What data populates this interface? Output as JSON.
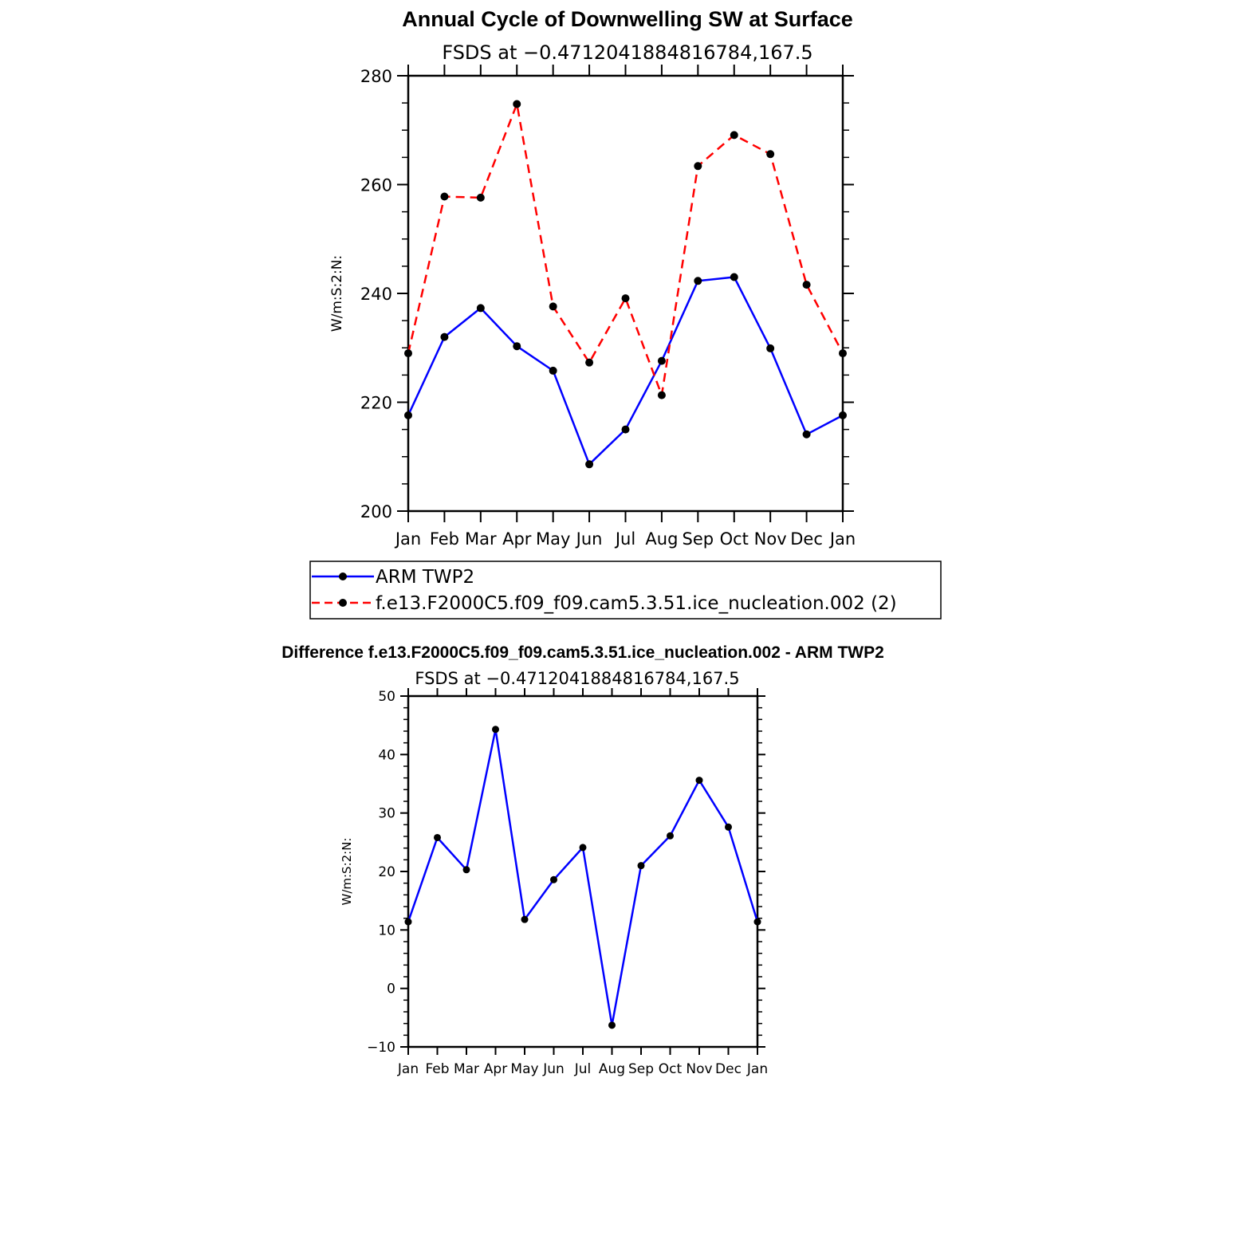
{
  "chart_data": [
    {
      "type": "line",
      "title": "Annual Cycle of Downwelling SW at Surface",
      "subtitle": "FSDS at −0.4712041884816784,167.5",
      "xlabel": "",
      "ylabel": "W/m:S:2:N:",
      "categories": [
        "Jan",
        "Feb",
        "Mar",
        "Apr",
        "May",
        "Jun",
        "Jul",
        "Aug",
        "Sep",
        "Oct",
        "Nov",
        "Dec",
        "Jan"
      ],
      "ylim": [
        200,
        280
      ],
      "yticks": [
        "200",
        "220",
        "240",
        "260",
        "280"
      ],
      "series": [
        {
          "name": "ARM TWP2",
          "color": "#0000ff",
          "dash": "solid",
          "values": [
            217.6,
            232.0,
            237.3,
            230.3,
            225.8,
            208.6,
            215.0,
            227.6,
            242.3,
            243.0,
            229.9,
            214.1,
            217.6
          ]
        },
        {
          "name": "f.e13.F2000C5.f09_f09.cam5.3.51.ice_nucleation.002 (2)",
          "color": "#ff0000",
          "dash": "dashed",
          "values": [
            229.0,
            257.8,
            257.6,
            274.8,
            237.6,
            227.3,
            239.1,
            221.3,
            263.4,
            269.1,
            265.6,
            241.6,
            229.0
          ]
        }
      ],
      "legend": [
        {
          "label": "ARM TWP2",
          "color": "#0000ff",
          "dash": "solid"
        },
        {
          "label": "f.e13.F2000C5.f09_f09.cam5.3.51.ice_nucleation.002 (2)",
          "color": "#ff0000",
          "dash": "dashed"
        }
      ],
      "marker_color": "#000000"
    },
    {
      "type": "line",
      "title": "Difference f.e13.F2000C5.f09_f09.cam5.3.51.ice_nucleation.002 - ARM TWP2",
      "subtitle": "FSDS at −0.4712041884816784,167.5",
      "xlabel": "",
      "ylabel": "W/m:S:2:N:",
      "categories": [
        "Jan",
        "Feb",
        "Mar",
        "Apr",
        "May",
        "Jun",
        "Jul",
        "Aug",
        "Sep",
        "Oct",
        "Nov",
        "Dec",
        "Jan"
      ],
      "ylim": [
        -10,
        50
      ],
      "yticks": [
        "−10",
        "0",
        "10",
        "20",
        "30",
        "40",
        "50"
      ],
      "series": [
        {
          "name": "Difference",
          "color": "#0000ff",
          "dash": "solid",
          "values": [
            11.4,
            25.8,
            20.3,
            44.3,
            11.8,
            18.6,
            24.1,
            -6.3,
            21.0,
            26.1,
            35.6,
            27.6,
            11.4
          ]
        }
      ],
      "marker_color": "#000000"
    }
  ]
}
